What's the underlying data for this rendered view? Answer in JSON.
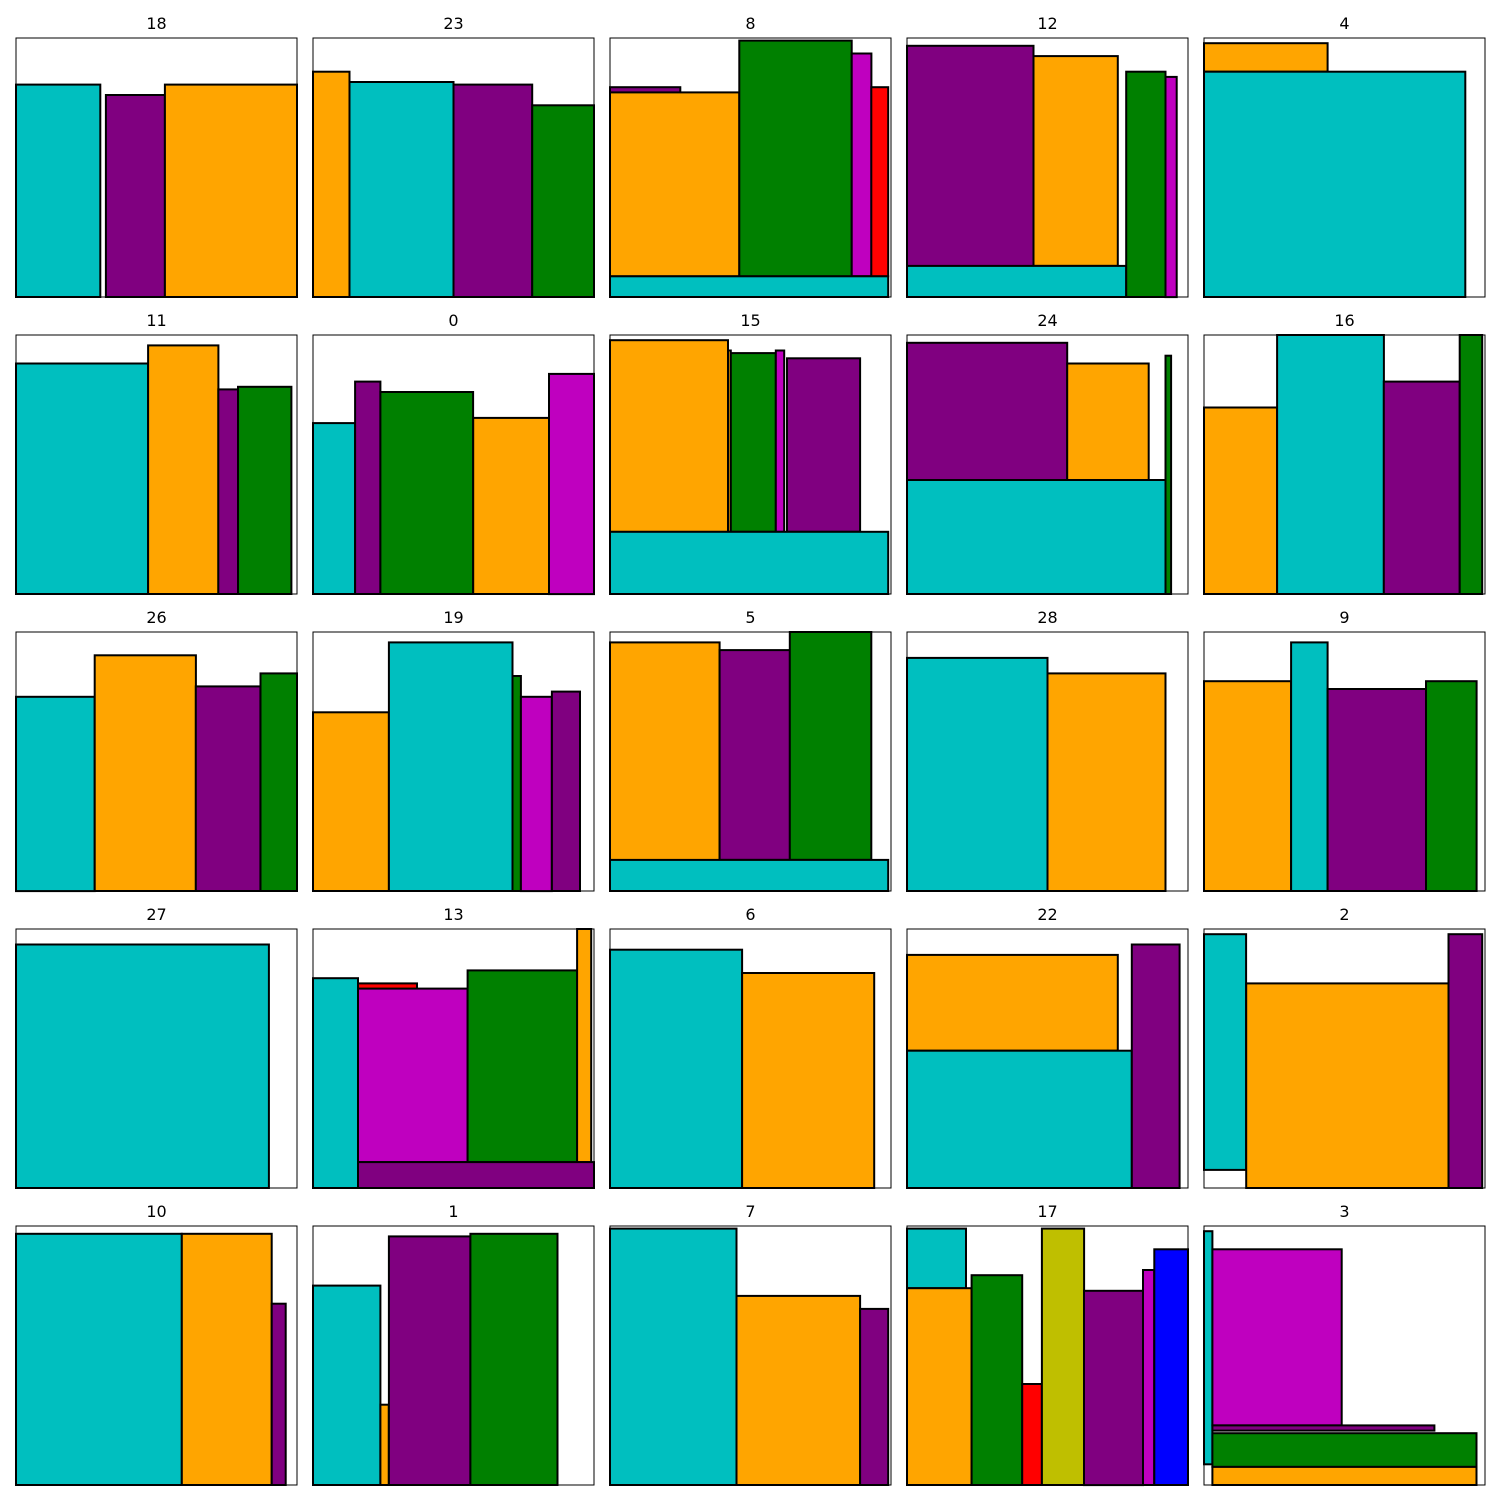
{
  "colors": {
    "cyan": "#00bfbf",
    "purple": "#800080",
    "orange": "#ffa500",
    "green": "#008000",
    "magenta": "#bf00bf",
    "red": "#ff0000",
    "olive": "#bfbf00",
    "blue": "#0000ff"
  },
  "chart_data": {
    "type": "rectangle-packing-grid",
    "grid": {
      "rows": 5,
      "cols": 5
    },
    "panel_xlim": [
      0,
      1
    ],
    "panel_ylim": [
      0,
      1
    ],
    "panels": [
      {
        "title": "18",
        "rects": [
          {
            "color": "cyan",
            "x0": 0.0,
            "x1": 0.3,
            "y0": 0,
            "y1": 0.82
          },
          {
            "color": "purple",
            "x0": 0.32,
            "x1": 0.53,
            "y0": 0,
            "y1": 0.78
          },
          {
            "color": "orange",
            "x0": 0.53,
            "x1": 1.0,
            "y0": 0,
            "y1": 0.82
          }
        ]
      },
      {
        "title": "23",
        "rects": [
          {
            "color": "orange",
            "x0": 0.0,
            "x1": 0.13,
            "y0": 0,
            "y1": 0.87
          },
          {
            "color": "cyan",
            "x0": 0.13,
            "x1": 0.5,
            "y0": 0,
            "y1": 0.83
          },
          {
            "color": "purple",
            "x0": 0.5,
            "x1": 0.78,
            "y0": 0,
            "y1": 0.82
          },
          {
            "color": "green",
            "x0": 0.78,
            "x1": 1.0,
            "y0": 0,
            "y1": 0.74
          }
        ]
      },
      {
        "title": "8",
        "rects": [
          {
            "color": "purple",
            "x0": 0.0,
            "x1": 0.25,
            "y0": 0.08,
            "y1": 0.81
          },
          {
            "color": "orange",
            "x0": 0.0,
            "x1": 0.46,
            "y0": 0.08,
            "y1": 0.79
          },
          {
            "color": "green",
            "x0": 0.46,
            "x1": 0.86,
            "y0": 0.08,
            "y1": 0.99
          },
          {
            "color": "magenta",
            "x0": 0.86,
            "x1": 0.93,
            "y0": 0.08,
            "y1": 0.94
          },
          {
            "color": "red",
            "x0": 0.93,
            "x1": 0.99,
            "y0": 0.08,
            "y1": 0.81
          },
          {
            "color": "cyan",
            "x0": 0.0,
            "x1": 0.99,
            "y0": 0,
            "y1": 0.08
          }
        ]
      },
      {
        "title": "12",
        "rects": [
          {
            "color": "purple",
            "x0": 0.0,
            "x1": 0.45,
            "y0": 0.12,
            "y1": 0.97
          },
          {
            "color": "orange",
            "x0": 0.45,
            "x1": 0.75,
            "y0": 0.12,
            "y1": 0.93
          },
          {
            "color": "cyan",
            "x0": 0.0,
            "x1": 0.78,
            "y0": 0,
            "y1": 0.12
          },
          {
            "color": "green",
            "x0": 0.78,
            "x1": 0.92,
            "y0": 0,
            "y1": 0.87
          },
          {
            "color": "magenta",
            "x0": 0.92,
            "x1": 0.96,
            "y0": 0,
            "y1": 0.85
          }
        ]
      },
      {
        "title": "4",
        "rects": [
          {
            "color": "orange",
            "x0": 0.0,
            "x1": 0.44,
            "y0": 0.87,
            "y1": 0.98
          },
          {
            "color": "cyan",
            "x0": 0.0,
            "x1": 0.93,
            "y0": 0,
            "y1": 0.87
          }
        ]
      },
      {
        "title": "11",
        "rects": [
          {
            "color": "cyan",
            "x0": 0.0,
            "x1": 0.47,
            "y0": 0,
            "y1": 0.89
          },
          {
            "color": "orange",
            "x0": 0.47,
            "x1": 0.72,
            "y0": 0,
            "y1": 0.96
          },
          {
            "color": "purple",
            "x0": 0.72,
            "x1": 0.79,
            "y0": 0,
            "y1": 0.79
          },
          {
            "color": "green",
            "x0": 0.79,
            "x1": 0.98,
            "y0": 0,
            "y1": 0.8
          }
        ]
      },
      {
        "title": "0",
        "rects": [
          {
            "color": "cyan",
            "x0": 0.0,
            "x1": 0.15,
            "y0": 0,
            "y1": 0.66
          },
          {
            "color": "purple",
            "x0": 0.15,
            "x1": 0.24,
            "y0": 0,
            "y1": 0.82
          },
          {
            "color": "green",
            "x0": 0.24,
            "x1": 0.57,
            "y0": 0,
            "y1": 0.78
          },
          {
            "color": "orange",
            "x0": 0.57,
            "x1": 0.84,
            "y0": 0,
            "y1": 0.68
          },
          {
            "color": "magenta",
            "x0": 0.84,
            "x1": 1.0,
            "y0": 0,
            "y1": 0.85
          }
        ]
      },
      {
        "title": "15",
        "rects": [
          {
            "color": "orange",
            "x0": 0.0,
            "x1": 0.42,
            "y0": 0.24,
            "y1": 0.98
          },
          {
            "color": "orange",
            "x0": 0.42,
            "x1": 0.43,
            "y0": 0.24,
            "y1": 0.94
          },
          {
            "color": "green",
            "x0": 0.43,
            "x1": 0.59,
            "y0": 0.24,
            "y1": 0.93
          },
          {
            "color": "magenta",
            "x0": 0.59,
            "x1": 0.62,
            "y0": 0.24,
            "y1": 0.94
          },
          {
            "color": "purple",
            "x0": 0.63,
            "x1": 0.89,
            "y0": 0.24,
            "y1": 0.91
          },
          {
            "color": "cyan",
            "x0": 0.0,
            "x1": 0.99,
            "y0": 0,
            "y1": 0.24
          }
        ]
      },
      {
        "title": "24",
        "rects": [
          {
            "color": "purple",
            "x0": 0.0,
            "x1": 0.57,
            "y0": 0.44,
            "y1": 0.97
          },
          {
            "color": "orange",
            "x0": 0.57,
            "x1": 0.86,
            "y0": 0.44,
            "y1": 0.89
          },
          {
            "color": "cyan",
            "x0": 0.0,
            "x1": 0.92,
            "y0": 0,
            "y1": 0.44
          },
          {
            "color": "green",
            "x0": 0.92,
            "x1": 0.94,
            "y0": 0,
            "y1": 0.92
          }
        ]
      },
      {
        "title": "16",
        "rects": [
          {
            "color": "orange",
            "x0": 0.0,
            "x1": 0.26,
            "y0": 0,
            "y1": 0.72
          },
          {
            "color": "cyan",
            "x0": 0.26,
            "x1": 0.64,
            "y0": 0,
            "y1": 1.0
          },
          {
            "color": "purple",
            "x0": 0.64,
            "x1": 0.91,
            "y0": 0,
            "y1": 0.82
          },
          {
            "color": "green",
            "x0": 0.91,
            "x1": 0.99,
            "y0": 0,
            "y1": 1.0
          }
        ]
      },
      {
        "title": "26",
        "rects": [
          {
            "color": "cyan",
            "x0": 0.0,
            "x1": 0.28,
            "y0": 0,
            "y1": 0.75
          },
          {
            "color": "orange",
            "x0": 0.28,
            "x1": 0.64,
            "y0": 0,
            "y1": 0.91
          },
          {
            "color": "purple",
            "x0": 0.64,
            "x1": 0.87,
            "y0": 0,
            "y1": 0.79
          },
          {
            "color": "green",
            "x0": 0.87,
            "x1": 1.0,
            "y0": 0,
            "y1": 0.84
          }
        ]
      },
      {
        "title": "19",
        "rects": [
          {
            "color": "orange",
            "x0": 0.0,
            "x1": 0.27,
            "y0": 0,
            "y1": 0.69
          },
          {
            "color": "cyan",
            "x0": 0.27,
            "x1": 0.71,
            "y0": 0,
            "y1": 0.96
          },
          {
            "color": "green",
            "x0": 0.71,
            "x1": 0.74,
            "y0": 0,
            "y1": 0.83
          },
          {
            "color": "magenta",
            "x0": 0.74,
            "x1": 0.85,
            "y0": 0,
            "y1": 0.75
          },
          {
            "color": "purple",
            "x0": 0.85,
            "x1": 0.95,
            "y0": 0,
            "y1": 0.77
          }
        ]
      },
      {
        "title": "5",
        "rects": [
          {
            "color": "orange",
            "x0": 0.0,
            "x1": 0.39,
            "y0": 0.12,
            "y1": 0.96
          },
          {
            "color": "purple",
            "x0": 0.39,
            "x1": 0.64,
            "y0": 0.12,
            "y1": 0.93
          },
          {
            "color": "green",
            "x0": 0.64,
            "x1": 0.93,
            "y0": 0.12,
            "y1": 1.0
          },
          {
            "color": "cyan",
            "x0": 0.0,
            "x1": 0.99,
            "y0": 0,
            "y1": 0.12
          }
        ]
      },
      {
        "title": "28",
        "rects": [
          {
            "color": "cyan",
            "x0": 0.0,
            "x1": 0.5,
            "y0": 0,
            "y1": 0.9
          },
          {
            "color": "orange",
            "x0": 0.5,
            "x1": 0.92,
            "y0": 0,
            "y1": 0.84
          }
        ]
      },
      {
        "title": "9",
        "rects": [
          {
            "color": "orange",
            "x0": 0.0,
            "x1": 0.31,
            "y0": 0,
            "y1": 0.81
          },
          {
            "color": "cyan",
            "x0": 0.31,
            "x1": 0.44,
            "y0": 0,
            "y1": 0.96
          },
          {
            "color": "purple",
            "x0": 0.44,
            "x1": 0.79,
            "y0": 0,
            "y1": 0.78
          },
          {
            "color": "green",
            "x0": 0.79,
            "x1": 0.97,
            "y0": 0,
            "y1": 0.81
          }
        ]
      },
      {
        "title": "27",
        "rects": [
          {
            "color": "cyan",
            "x0": 0.0,
            "x1": 0.9,
            "y0": 0,
            "y1": 0.94
          }
        ]
      },
      {
        "title": "13",
        "rects": [
          {
            "color": "cyan",
            "x0": 0.0,
            "x1": 0.16,
            "y0": 0,
            "y1": 0.81
          },
          {
            "color": "red",
            "x0": 0.16,
            "x1": 0.37,
            "y0": 0.1,
            "y1": 0.79
          },
          {
            "color": "magenta",
            "x0": 0.16,
            "x1": 0.55,
            "y0": 0.1,
            "y1": 0.77
          },
          {
            "color": "green",
            "x0": 0.55,
            "x1": 0.94,
            "y0": 0.1,
            "y1": 0.84
          },
          {
            "color": "orange",
            "x0": 0.94,
            "x1": 0.99,
            "y0": 0.1,
            "y1": 1.0
          },
          {
            "color": "purple",
            "x0": 0.16,
            "x1": 1.0,
            "y0": 0,
            "y1": 0.1
          }
        ]
      },
      {
        "title": "6",
        "rects": [
          {
            "color": "cyan",
            "x0": 0.0,
            "x1": 0.47,
            "y0": 0,
            "y1": 0.92
          },
          {
            "color": "orange",
            "x0": 0.47,
            "x1": 0.94,
            "y0": 0,
            "y1": 0.83
          }
        ]
      },
      {
        "title": "22",
        "rects": [
          {
            "color": "orange",
            "x0": 0.0,
            "x1": 0.75,
            "y0": 0.53,
            "y1": 0.9
          },
          {
            "color": "cyan",
            "x0": 0.0,
            "x1": 0.8,
            "y0": 0,
            "y1": 0.53
          },
          {
            "color": "purple",
            "x0": 0.8,
            "x1": 0.97,
            "y0": 0,
            "y1": 0.94
          }
        ]
      },
      {
        "title": "2",
        "rects": [
          {
            "color": "cyan",
            "x0": 0.0,
            "x1": 0.15,
            "y0": 0.07,
            "y1": 0.98
          },
          {
            "color": "orange",
            "x0": 0.15,
            "x1": 0.87,
            "y0": 0,
            "y1": 0.79
          },
          {
            "color": "purple",
            "x0": 0.87,
            "x1": 0.99,
            "y0": 0,
            "y1": 0.98
          }
        ]
      },
      {
        "title": "10",
        "rects": [
          {
            "color": "cyan",
            "x0": 0.0,
            "x1": 0.59,
            "y0": 0,
            "y1": 0.97
          },
          {
            "color": "orange",
            "x0": 0.59,
            "x1": 0.91,
            "y0": 0,
            "y1": 0.97
          },
          {
            "color": "purple",
            "x0": 0.91,
            "x1": 0.96,
            "y0": 0,
            "y1": 0.7
          }
        ]
      },
      {
        "title": "1",
        "rects": [
          {
            "color": "cyan",
            "x0": 0.0,
            "x1": 0.24,
            "y0": 0,
            "y1": 0.77
          },
          {
            "color": "orange",
            "x0": 0.24,
            "x1": 0.27,
            "y0": 0,
            "y1": 0.31
          },
          {
            "color": "purple",
            "x0": 0.27,
            "x1": 0.56,
            "y0": 0,
            "y1": 0.96
          },
          {
            "color": "green",
            "x0": 0.56,
            "x1": 0.87,
            "y0": 0,
            "y1": 0.97
          }
        ]
      },
      {
        "title": "7",
        "rects": [
          {
            "color": "cyan",
            "x0": 0.0,
            "x1": 0.45,
            "y0": 0,
            "y1": 0.99
          },
          {
            "color": "orange",
            "x0": 0.45,
            "x1": 0.89,
            "y0": 0,
            "y1": 0.73
          },
          {
            "color": "purple",
            "x0": 0.89,
            "x1": 0.99,
            "y0": 0,
            "y1": 0.68
          }
        ]
      },
      {
        "title": "17",
        "rects": [
          {
            "color": "cyan",
            "x0": 0.0,
            "x1": 0.21,
            "y0": 0.76,
            "y1": 0.99
          },
          {
            "color": "orange",
            "x0": 0.0,
            "x1": 0.23,
            "y0": 0,
            "y1": 0.76
          },
          {
            "color": "green",
            "x0": 0.23,
            "x1": 0.41,
            "y0": 0,
            "y1": 0.81
          },
          {
            "color": "red",
            "x0": 0.41,
            "x1": 0.48,
            "y0": 0,
            "y1": 0.39
          },
          {
            "color": "olive",
            "x0": 0.48,
            "x1": 0.63,
            "y0": 0,
            "y1": 0.99
          },
          {
            "color": "purple",
            "x0": 0.63,
            "x1": 0.84,
            "y0": 0,
            "y1": 0.75
          },
          {
            "color": "magenta",
            "x0": 0.84,
            "x1": 0.88,
            "y0": 0,
            "y1": 0.83
          },
          {
            "color": "blue",
            "x0": 0.88,
            "x1": 1.0,
            "y0": 0,
            "y1": 0.91
          }
        ]
      },
      {
        "title": "3",
        "rects": [
          {
            "color": "cyan",
            "x0": 0.0,
            "x1": 0.03,
            "y0": 0.08,
            "y1": 0.98
          },
          {
            "color": "magenta",
            "x0": 0.03,
            "x1": 0.49,
            "y0": 0.23,
            "y1": 0.91
          },
          {
            "color": "purple",
            "x0": 0.03,
            "x1": 0.82,
            "y0": 0.21,
            "y1": 0.23
          },
          {
            "color": "green",
            "x0": 0.03,
            "x1": 0.97,
            "y0": 0.07,
            "y1": 0.2
          },
          {
            "color": "orange",
            "x0": 0.03,
            "x1": 0.97,
            "y0": 0,
            "y1": 0.07
          }
        ]
      }
    ]
  }
}
